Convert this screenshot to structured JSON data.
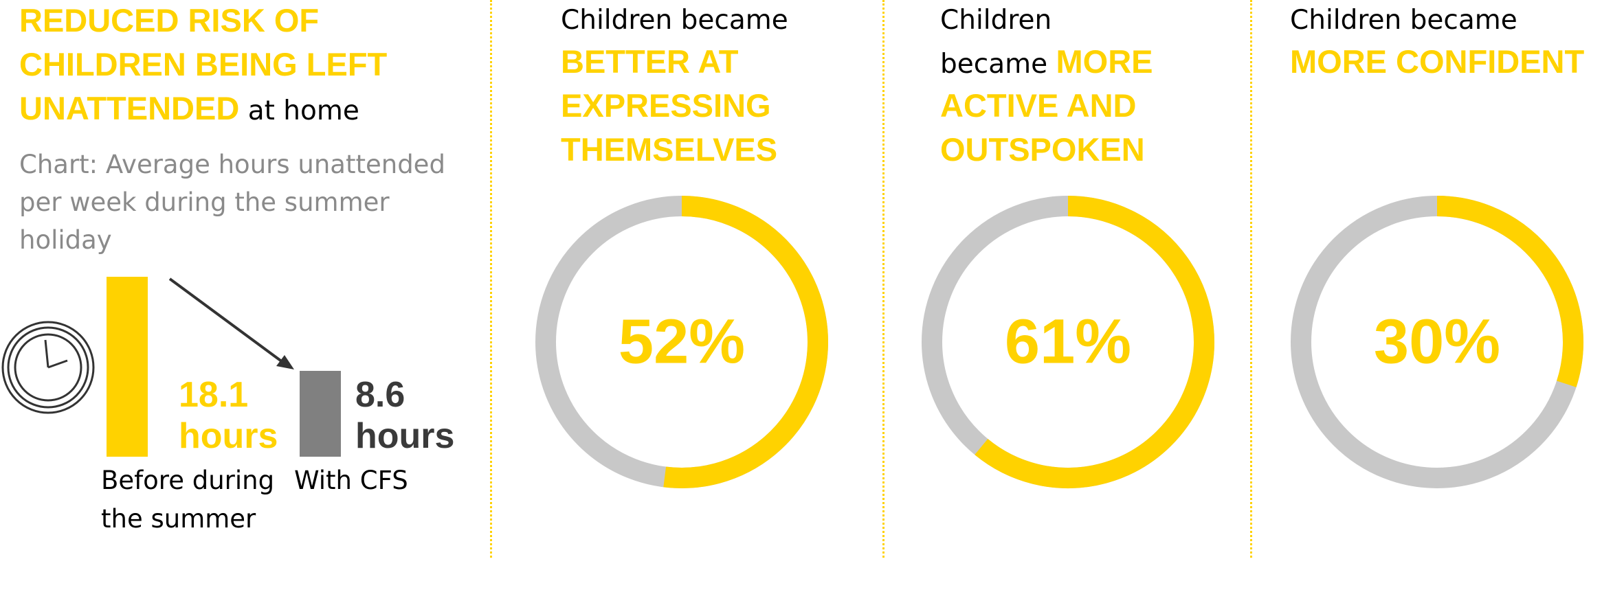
{
  "chart_data": [
    {
      "type": "bar",
      "title_highlight": "REDUCED RISK OF CHILDREN BEING LEFT UNATTENDED",
      "title_rest": "at home",
      "subtitle": "Chart: Average hours unattended per week during the summer holiday",
      "categories": [
        "Before during the summer",
        "With CFS"
      ],
      "values": [
        18.1,
        8.6
      ],
      "value_labels": [
        "18.1 hours",
        "8.6 hours"
      ],
      "colors": [
        "#FFD200",
        "#808080"
      ]
    },
    {
      "type": "donut",
      "title_prefix": "Children became",
      "title_highlight": "BETTER AT EXPRESSING THEMSELVES",
      "values": [
        52
      ],
      "value_labels": [
        "52%"
      ],
      "color": "#FFD200",
      "track_color": "#C8C8C8"
    },
    {
      "type": "donut",
      "title_prefix": "Children became",
      "title_highlight": "MORE ACTIVE AND OUTSPOKEN",
      "values": [
        61
      ],
      "value_labels": [
        "61%"
      ],
      "color": "#FFD200",
      "track_color": "#C8C8C8"
    },
    {
      "type": "donut",
      "title_prefix": "Children became",
      "title_highlight": "MORE CONFIDENT",
      "values": [
        30
      ],
      "value_labels": [
        "30%"
      ],
      "color": "#FFD200",
      "track_color": "#C8C8C8"
    }
  ]
}
